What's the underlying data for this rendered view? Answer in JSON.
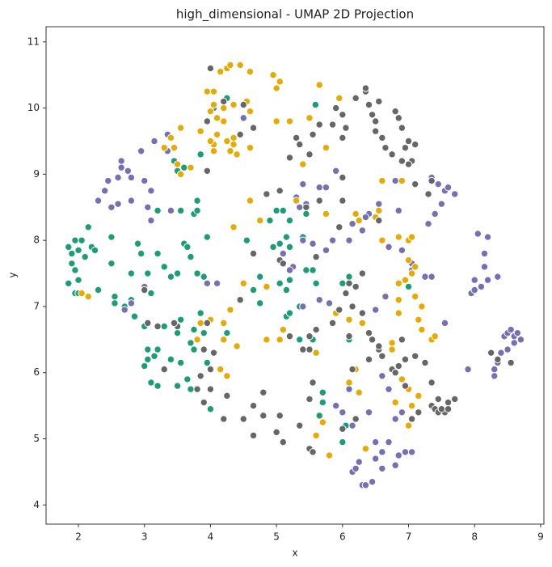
{
  "chart_data": {
    "type": "scatter",
    "title": "high_dimensional - UMAP 2D Projection",
    "x_label": "x",
    "y_label": "y",
    "xlim": [
      1.51,
      9.05
    ],
    "ylim": [
      3.71,
      11.23
    ],
    "xticks": [
      2,
      3,
      4,
      5,
      6,
      7,
      8,
      9
    ],
    "yticks": [
      4,
      5,
      6,
      7,
      8,
      9,
      10,
      11
    ],
    "grid": false,
    "series": [
      {
        "color": "#1b9e77",
        "x": [
          1.85,
          1.9,
          1.95,
          2.0,
          2.05,
          2.1,
          2.15,
          2.2,
          2.25,
          1.9,
          1.95,
          2.0,
          1.85,
          1.95,
          2.0,
          2.3,
          2.5,
          2.5,
          2.55,
          2.55,
          2.7,
          2.8,
          2.8,
          2.85,
          2.9,
          2.95,
          3.05,
          3.1,
          3.2,
          3.3,
          3.4,
          3.5,
          3.6,
          3.65,
          3.7,
          3.8,
          3.9,
          3.95,
          3.55,
          3.75,
          3.8,
          3.8,
          3.2,
          3.0,
          3.05,
          3.15,
          3.2,
          3.3,
          3.4,
          3.5,
          3.55,
          3.55,
          3.7,
          3.75,
          3.75,
          3.85,
          3.9,
          3.95,
          3.65,
          3.1,
          3.2,
          3.5,
          4.0,
          3.0,
          3.05,
          3.7,
          3.45,
          3.5,
          3.6,
          3.85,
          4.05,
          4.25,
          5.59,
          4.75,
          4.55,
          4.9,
          5.0,
          5.1,
          5.2,
          5.15,
          5.2,
          5.05,
          4.95,
          4.75,
          4.65,
          4.75,
          5.05,
          5.15,
          5.2,
          5.45,
          5.55,
          5.6,
          5.4,
          5.45,
          4.25,
          5.35,
          5.6,
          5.55,
          5.7,
          5.7,
          5.65,
          6.0,
          6.05,
          6.1,
          6.0,
          6.1,
          7.0,
          5.15,
          5.2,
          5.35
        ],
        "values": [
          7.9,
          7.8,
          8.0,
          7.85,
          8.0,
          7.75,
          8.2,
          7.9,
          7.85,
          7.65,
          7.55,
          7.4,
          7.35,
          7.2,
          7.2,
          7.25,
          7.65,
          8.05,
          7.15,
          7.05,
          7.0,
          7.5,
          7.1,
          6.85,
          7.95,
          7.8,
          7.5,
          7.2,
          7.8,
          7.6,
          7.45,
          7.5,
          7.95,
          7.9,
          7.75,
          7.5,
          7.45,
          8.05,
          8.45,
          8.4,
          8.6,
          8.45,
          8.45,
          6.7,
          6.35,
          6.25,
          6.35,
          6.7,
          6.2,
          6.6,
          6.8,
          6.15,
          6.45,
          6.65,
          6.35,
          6.9,
          6.6,
          6.15,
          5.9,
          5.85,
          5.8,
          5.8,
          5.45,
          6.1,
          6.2,
          5.75,
          9.2,
          9.05,
          9.1,
          9.3,
          10.0,
          10.15,
          10.05,
          8.3,
          8.0,
          8.3,
          8.45,
          8.45,
          8.3,
          8.05,
          7.9,
          7.95,
          7.9,
          7.45,
          7.25,
          7.05,
          7.35,
          7.25,
          7.4,
          7.55,
          7.55,
          7.35,
          8.05,
          8.4,
          6.6,
          6.5,
          6.65,
          6.5,
          5.7,
          5.55,
          5.35,
          4.95,
          5.2,
          7.45,
          7.35,
          6.5,
          7.3,
          6.85,
          6.9,
          7.0
        ]
      },
      {
        "color": "#7570b3",
        "x": [
          2.3,
          2.4,
          2.45,
          2.5,
          2.6,
          2.6,
          2.65,
          2.65,
          2.75,
          2.8,
          2.8,
          2.95,
          3.0,
          3.05,
          3.1,
          3.15,
          3.35,
          3.35,
          3.1,
          3.4,
          2.8,
          2.7,
          3.0,
          3.95,
          4.5,
          5.3,
          5.4,
          5.65,
          5.75,
          5.45,
          5.35,
          5.9,
          6.55,
          6.4,
          6.35,
          6.15,
          5.1,
          5.25,
          5.4,
          5.55,
          5.75,
          5.85,
          6.1,
          6.3,
          6.7,
          6.9,
          7.05,
          7.25,
          7.35,
          7.05,
          5.2,
          5.4,
          5.65,
          5.8,
          5.95,
          6.3,
          6.5,
          6.65,
          6.3,
          6.8,
          6.85,
          7.3,
          7.4,
          7.5,
          7.35,
          7.45,
          7.55,
          7.6,
          7.7,
          8.05,
          8.2,
          8.15,
          8.15,
          8.0,
          8.1,
          8.2,
          8.35,
          7.95,
          8.0,
          8.45,
          8.5,
          8.55,
          8.6,
          8.65,
          8.7,
          8.6,
          8.5,
          8.4,
          8.35,
          8.3,
          8.3,
          7.55,
          7.9,
          6.15,
          6.2,
          6.25,
          6.3,
          6.35,
          6.45,
          6.5,
          6.6,
          6.6,
          6.7,
          6.8,
          6.85,
          6.95,
          7.05,
          6.5,
          6.8,
          6.9,
          6.7,
          6.4,
          6.0,
          6.15,
          5.9,
          6.1,
          6.6,
          4.1
        ],
        "values": [
          8.6,
          8.75,
          8.9,
          8.5,
          8.55,
          8.95,
          9.2,
          9.1,
          9.05,
          8.95,
          8.6,
          9.35,
          8.9,
          8.5,
          8.75,
          9.5,
          9.6,
          9.35,
          8.3,
          8.45,
          7.05,
          6.95,
          7.3,
          7.35,
          9.85,
          8.65,
          8.85,
          8.8,
          8.8,
          8.55,
          8.5,
          9.05,
          8.55,
          8.4,
          8.35,
          8.25,
          7.8,
          7.6,
          8.0,
          7.95,
          7.85,
          8.0,
          8.0,
          8.15,
          7.9,
          7.85,
          7.55,
          7.45,
          7.45,
          7.65,
          7.55,
          7.0,
          7.1,
          7.05,
          6.95,
          6.9,
          6.95,
          7.15,
          6.75,
          8.9,
          8.45,
          8.25,
          8.4,
          8.55,
          8.95,
          8.85,
          8.75,
          8.8,
          8.7,
          8.1,
          8.05,
          7.8,
          7.6,
          7.4,
          7.3,
          7.4,
          7.45,
          7.2,
          7.25,
          6.55,
          6.6,
          6.65,
          6.55,
          6.6,
          6.5,
          6.45,
          6.35,
          6.3,
          6.15,
          6.05,
          5.95,
          6.75,
          6.05,
          4.5,
          4.55,
          4.65,
          4.3,
          4.3,
          4.35,
          4.7,
          4.55,
          4.8,
          4.95,
          4.6,
          4.75,
          4.8,
          4.8,
          4.95,
          5.3,
          5.4,
          5.75,
          5.4,
          5.4,
          5.2,
          5.5,
          5.75,
          5.95,
          7.35
        ]
      },
      {
        "color": "#e6ab02",
        "x": [
          4.15,
          4.25,
          4.3,
          4.45,
          4.6,
          4.95,
          5.05,
          5.0,
          3.95,
          4.05,
          4.05,
          4.2,
          4.35,
          4.1,
          4.0,
          4.55,
          4.6,
          4.2,
          4.1,
          4.25,
          4.35,
          4.35,
          4.4,
          4.3,
          4.05,
          4.05,
          3.55,
          3.85,
          3.3,
          3.4,
          3.45,
          3.5,
          3.55,
          3.7,
          4.0,
          4.6,
          5.0,
          5.2,
          5.5,
          5.65,
          5.95,
          5.75,
          5.4,
          4.35,
          4.75,
          4.6,
          5.3,
          5.75,
          6.2,
          6.25,
          6.5,
          6.55,
          6.6,
          6.85,
          6.6,
          6.9,
          7.0,
          7.05,
          7.1,
          7.05,
          7.0,
          6.95,
          7.1,
          7.2,
          7.15,
          6.85,
          6.85,
          6.85,
          7.2,
          7.35,
          7.4,
          6.3,
          6.1,
          5.9,
          5.1,
          5.05,
          4.85,
          4.5,
          4.85,
          3.85,
          4.0,
          4.2,
          4.3,
          4.2,
          4.15,
          4.4,
          4.25,
          5.7,
          5.6,
          5.8,
          6.25,
          6.35,
          6.8,
          6.9,
          7.0,
          7.05,
          7.15,
          7.0,
          6.75,
          6.75,
          6.2,
          6.1,
          5.6,
          2.05,
          2.15,
          3.8
        ],
        "values": [
          10.55,
          10.6,
          10.65,
          10.65,
          10.55,
          10.5,
          10.4,
          10.3,
          10.25,
          10.25,
          10.05,
          10.0,
          10.05,
          9.85,
          9.95,
          10.1,
          9.95,
          9.8,
          9.6,
          9.5,
          9.55,
          9.45,
          9.3,
          9.35,
          9.45,
          9.35,
          9.7,
          9.65,
          9.4,
          9.55,
          9.4,
          9.15,
          9.0,
          9.1,
          9.5,
          9.4,
          9.8,
          9.8,
          9.85,
          10.35,
          10.15,
          9.4,
          9.15,
          8.2,
          8.3,
          8.6,
          8.6,
          8.4,
          8.4,
          8.3,
          8.35,
          8.45,
          8.0,
          8.05,
          8.9,
          8.9,
          8.0,
          8.05,
          7.6,
          7.5,
          7.7,
          7.4,
          7.15,
          7.0,
          6.8,
          6.9,
          7.1,
          7.35,
          6.65,
          6.5,
          6.55,
          6.75,
          6.8,
          6.9,
          6.65,
          6.5,
          6.5,
          7.35,
          7.3,
          6.75,
          6.8,
          6.75,
          6.95,
          6.5,
          6.05,
          6.4,
          5.95,
          5.25,
          5.05,
          4.75,
          5.7,
          4.85,
          5.55,
          5.9,
          5.75,
          5.5,
          5.65,
          5.2,
          6.35,
          6.45,
          6.05,
          5.85,
          6.3,
          7.2,
          7.15,
          6.5
        ]
      },
      {
        "color": "#666666",
        "x": [
          4.0,
          3.95,
          4.5,
          4.2,
          4.65,
          4.45,
          5.3,
          5.2,
          5.35,
          5.5,
          5.55,
          5.65,
          5.85,
          5.9,
          6.0,
          6.05,
          6.0,
          6.2,
          6.35,
          6.35,
          6.4,
          6.45,
          6.55,
          6.5,
          6.5,
          6.6,
          6.65,
          6.75,
          6.8,
          6.85,
          6.9,
          6.95,
          7.0,
          7.1,
          7.05,
          7.0,
          6.9,
          7.1,
          7.3,
          7.35,
          3.95,
          4.65,
          4.85,
          5.05,
          5.45,
          5.65,
          6.0,
          6.0,
          5.95,
          5.6,
          6.05,
          6.1,
          6.2,
          6.3,
          5.95,
          6.15,
          6.3,
          6.4,
          6.45,
          6.55,
          6.6,
          6.85,
          6.9,
          6.95,
          7.1,
          7.25,
          6.75,
          6.1,
          5.85,
          5.6,
          5.5,
          5.4,
          5.2,
          5.05,
          5.1,
          3.2,
          3.3,
          3.05,
          3.0,
          3.95,
          3.9,
          4.05,
          4.0,
          3.85,
          4.0,
          4.25,
          3.8,
          3.9,
          4.2,
          4.5,
          4.65,
          4.65,
          4.8,
          5.05,
          4.8,
          5.0,
          5.1,
          5.35,
          5.5,
          5.55,
          5.5,
          5.55,
          5.5,
          6.0,
          6.2,
          6.15,
          6.4,
          6.55,
          6.8,
          6.95,
          7.05,
          7.15,
          7.35,
          7.4,
          7.45,
          7.55,
          7.6,
          7.7,
          7.5,
          7.35,
          7.45,
          7.6,
          8.25,
          8.35,
          8.55,
          6.55,
          3.5,
          3.45,
          4.45
        ],
        "values": [
          10.6,
          9.8,
          10.05,
          10.1,
          9.7,
          9.6,
          9.55,
          9.25,
          9.45,
          9.3,
          9.6,
          9.75,
          9.75,
          10.0,
          9.9,
          9.7,
          9.55,
          10.15,
          10.25,
          10.3,
          10.05,
          9.9,
          10.1,
          9.8,
          9.65,
          9.55,
          9.4,
          9.3,
          9.95,
          9.85,
          9.7,
          9.4,
          9.5,
          9.45,
          9.2,
          9.15,
          9.2,
          8.85,
          8.7,
          8.9,
          9.05,
          7.8,
          8.7,
          8.75,
          8.5,
          8.6,
          8.95,
          8.6,
          8.2,
          7.75,
          7.2,
          7.35,
          7.3,
          7.5,
          6.95,
          7.0,
          6.9,
          6.6,
          6.5,
          6.35,
          6.25,
          6.1,
          6.5,
          6.2,
          6.25,
          6.15,
          6.05,
          6.55,
          6.75,
          6.65,
          6.35,
          6.35,
          6.55,
          7.7,
          7.65,
          6.7,
          6.05,
          6.75,
          7.25,
          6.75,
          6.35,
          6.3,
          6.05,
          5.95,
          5.75,
          5.65,
          5.75,
          5.55,
          5.3,
          5.3,
          5.05,
          5.5,
          5.35,
          5.35,
          5.7,
          5.1,
          4.95,
          5.2,
          4.85,
          4.8,
          5.6,
          5.85,
          6.55,
          5.15,
          5.3,
          6.05,
          6.2,
          6.4,
          6.0,
          5.8,
          5.3,
          5.4,
          5.5,
          5.45,
          5.4,
          5.4,
          5.55,
          5.6,
          5.45,
          5.85,
          5.6,
          5.45,
          6.3,
          6.2,
          6.15,
          8.3,
          6.7,
          6.75,
          7.1
        ]
      }
    ]
  }
}
